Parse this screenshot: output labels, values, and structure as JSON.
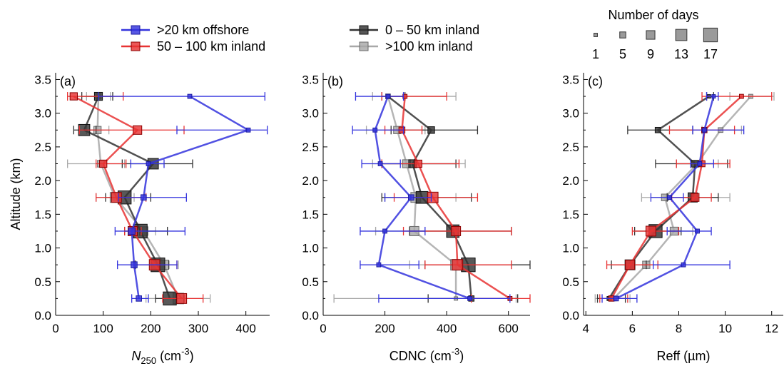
{
  "legend": {
    "series": [
      {
        "name": ">20 km offshore",
        "color": "#3333dd"
      },
      {
        "name": "50 – 100 km inland",
        "color": "#e83333"
      },
      {
        "name": "0 – 50 km inland",
        "color": "#333333"
      },
      {
        "name": ">100 km inland",
        "color": "#a8a8a8"
      }
    ],
    "size_title": "Number of days",
    "sizes": [
      {
        "label": "1",
        "days": 1
      },
      {
        "label": "5",
        "days": 5
      },
      {
        "label": "9",
        "days": 9
      },
      {
        "label": "13",
        "days": 13
      },
      {
        "label": "17",
        "days": 17
      }
    ]
  },
  "chart_data": [
    {
      "type": "scatter",
      "panel_label": "(a)",
      "xlabel_main": "N",
      "xlabel_sub": "250",
      "xlabel_unit": " (cm",
      "xlabel_sup": "-3",
      "xlabel_end": ")",
      "ylabel": "Altitude (km)",
      "xlim": [
        0,
        450
      ],
      "ylim": [
        0,
        3.6
      ],
      "xticks": [
        "0",
        "100",
        "200",
        "300",
        "400"
      ],
      "xtick_values": [
        0,
        100,
        200,
        300,
        400
      ],
      "yticks": [
        "0.0",
        "0.5",
        "1.0",
        "1.5",
        "2.0",
        "2.5",
        "3.0",
        "3.5"
      ],
      "ytick_values": [
        0,
        0.5,
        1,
        1.5,
        2,
        2.5,
        3,
        3.5
      ],
      "series": [
        {
          "name": ">20 km offshore",
          "points": [
            {
              "y": 0.25,
              "x": 175,
              "lo": 160,
              "hi": 195,
              "days": 4
            },
            {
              "y": 0.75,
              "x": 165,
              "lo": 130,
              "hi": 255,
              "days": 5
            },
            {
              "y": 1.25,
              "x": 160,
              "lo": 125,
              "hi": 272,
              "days": 6
            },
            {
              "y": 1.75,
              "x": 185,
              "lo": 132,
              "hi": 275,
              "days": 4
            },
            {
              "y": 2.25,
              "x": 195,
              "lo": 158,
              "hi": 228,
              "days": 2
            },
            {
              "y": 2.75,
              "x": 405,
              "lo": 255,
              "hi": 445,
              "days": 2
            },
            {
              "y": 3.25,
              "x": 282,
              "lo": 90,
              "hi": 440,
              "days": 2
            }
          ]
        },
        {
          "name": "50 – 100 km inland",
          "points": [
            {
              "y": 0.25,
              "x": 265,
              "lo": 225,
              "hi": 310,
              "days": 11
            },
            {
              "y": 0.75,
              "x": 208,
              "lo": 165,
              "hi": 255,
              "days": 12
            },
            {
              "y": 1.25,
              "x": 162,
              "lo": 145,
              "hi": 180,
              "days": 10
            },
            {
              "y": 1.75,
              "x": 128,
              "lo": 85,
              "hi": 190,
              "days": 11
            },
            {
              "y": 2.25,
              "x": 100,
              "lo": 85,
              "hi": 148,
              "days": 7
            },
            {
              "y": 2.75,
              "x": 172,
              "lo": 50,
              "hi": 270,
              "days": 9
            },
            {
              "y": 3.25,
              "x": 38,
              "lo": 25,
              "hi": 142,
              "days": 7
            }
          ]
        },
        {
          "name": "0 – 50 km inland",
          "points": [
            {
              "y": 0.25,
              "x": 240,
              "lo": 210,
              "hi": 270,
              "days": 16
            },
            {
              "y": 0.75,
              "x": 215,
              "lo": 168,
              "hi": 238,
              "days": 17
            },
            {
              "y": 1.25,
              "x": 178,
              "lo": 145,
              "hi": 235,
              "days": 17
            },
            {
              "y": 1.75,
              "x": 145,
              "lo": 105,
              "hi": 200,
              "days": 16
            },
            {
              "y": 2.25,
              "x": 205,
              "lo": 140,
              "hi": 288,
              "days": 12
            },
            {
              "y": 2.75,
              "x": 60,
              "lo": 38,
              "hi": 85,
              "days": 13
            },
            {
              "y": 3.25,
              "x": 90,
              "lo": 55,
              "hi": 120,
              "days": 8
            }
          ]
        },
        {
          "name": ">100 km inland",
          "points": [
            {
              "y": 0.25,
              "x": 258,
              "lo": 190,
              "hi": 325,
              "days": 12
            },
            {
              "y": 0.75,
              "x": 228,
              "lo": 200,
              "hi": 258,
              "days": 10
            },
            {
              "y": 1.25,
              "x": 185,
              "lo": 160,
              "hi": 210,
              "days": 9
            },
            {
              "y": 1.75,
              "x": 125,
              "lo": 85,
              "hi": 165,
              "days": 11
            },
            {
              "y": 2.25,
              "x": 95,
              "lo": 25,
              "hi": 145,
              "days": 6
            },
            {
              "y": 2.75,
              "x": 88,
              "lo": 65,
              "hi": 112,
              "days": 7
            },
            {
              "y": 3.25,
              "x": 90,
              "lo": 65,
              "hi": 115,
              "days": 4
            }
          ]
        }
      ]
    },
    {
      "type": "scatter",
      "panel_label": "(b)",
      "xlabel_main": "CDNC",
      "xlabel_sub": "",
      "xlabel_unit": " (cm",
      "xlabel_sup": "-3",
      "xlabel_end": ")",
      "ylabel": "",
      "xlim": [
        0,
        670
      ],
      "ylim": [
        0,
        3.6
      ],
      "xticks": [
        "0",
        "200",
        "400",
        "600"
      ],
      "xtick_values": [
        0,
        200,
        400,
        600
      ],
      "yticks": [
        "0.0",
        "0.5",
        "1.0",
        "1.5",
        "2.0",
        "2.5",
        "3.0",
        "3.5"
      ],
      "ytick_values": [
        0,
        0.5,
        1,
        1.5,
        2,
        2.5,
        3,
        3.5
      ],
      "series": [
        {
          "name": ">20 km offshore",
          "points": [
            {
              "y": 0.25,
              "x": 475,
              "lo": 180,
              "hi": 605,
              "days": 2
            },
            {
              "y": 0.75,
              "x": 180,
              "lo": 120,
              "hi": 310,
              "days": 2
            },
            {
              "y": 1.25,
              "x": 200,
              "lo": 120,
              "hi": 330,
              "days": 2
            },
            {
              "y": 1.75,
              "x": 285,
              "lo": 200,
              "hi": 350,
              "days": 4
            },
            {
              "y": 2.25,
              "x": 185,
              "lo": 125,
              "hi": 250,
              "days": 2
            },
            {
              "y": 2.75,
              "x": 168,
              "lo": 95,
              "hi": 260,
              "days": 2
            },
            {
              "y": 3.25,
              "x": 210,
              "lo": 105,
              "hi": 260,
              "days": 2
            }
          ]
        },
        {
          "name": "50 – 100 km inland",
          "points": [
            {
              "y": 0.25,
              "x": 605,
              "lo": 480,
              "hi": 670,
              "days": 2
            },
            {
              "y": 0.75,
              "x": 435,
              "lo": 330,
              "hi": 610,
              "days": 12
            },
            {
              "y": 1.25,
              "x": 430,
              "lo": 260,
              "hi": 610,
              "days": 10
            },
            {
              "y": 1.75,
              "x": 355,
              "lo": 230,
              "hi": 500,
              "days": 12
            },
            {
              "y": 2.25,
              "x": 308,
              "lo": 190,
              "hi": 440,
              "days": 7
            },
            {
              "y": 2.75,
              "x": 255,
              "lo": 200,
              "hi": 320,
              "days": 5
            },
            {
              "y": 3.25,
              "x": 265,
              "lo": 190,
              "hi": 400,
              "days": 2
            }
          ]
        },
        {
          "name": "0 – 50 km inland",
          "points": [
            {
              "y": 0.25,
              "x": 480,
              "lo": 340,
              "hi": 630,
              "days": 4
            },
            {
              "y": 0.75,
              "x": 470,
              "lo": 330,
              "hi": 670,
              "days": 17
            },
            {
              "y": 1.25,
              "x": 420,
              "lo": 280,
              "hi": 610,
              "days": 15
            },
            {
              "y": 1.75,
              "x": 320,
              "lo": 190,
              "hi": 480,
              "days": 14
            },
            {
              "y": 2.25,
              "x": 290,
              "lo": 190,
              "hi": 430,
              "days": 8
            },
            {
              "y": 2.75,
              "x": 350,
              "lo": 220,
              "hi": 500,
              "days": 6
            },
            {
              "y": 3.25,
              "x": 210,
              "lo": 190,
              "hi": 265,
              "days": 2
            }
          ]
        },
        {
          "name": ">100 km inland",
          "points": [
            {
              "y": 0.25,
              "x": 430,
              "lo": 35,
              "hi": 625,
              "days": 1
            },
            {
              "y": 0.75,
              "x": 430,
              "lo": 280,
              "hi": 610,
              "days": 12
            },
            {
              "y": 1.25,
              "x": 295,
              "lo": 170,
              "hi": 420,
              "days": 10
            },
            {
              "y": 1.75,
              "x": 300,
              "lo": 200,
              "hi": 430,
              "days": 11
            },
            {
              "y": 2.25,
              "x": 270,
              "lo": 160,
              "hi": 460,
              "days": 8
            },
            {
              "y": 2.75,
              "x": 240,
              "lo": 140,
              "hi": 330,
              "days": 7
            },
            {
              "y": 3.25,
              "x": 210,
              "lo": 160,
              "hi": 430,
              "days": 3
            }
          ]
        }
      ]
    },
    {
      "type": "scatter",
      "panel_label": "(c)",
      "xlabel_main": "Reff (µm)",
      "xlabel_sub": "",
      "xlabel_unit": "",
      "xlabel_sup": "",
      "xlabel_end": "",
      "ylabel": "",
      "xlim": [
        3.9,
        12.5
      ],
      "ylim": [
        0,
        3.6
      ],
      "xticks": [
        "4",
        "6",
        "8",
        "10",
        "12"
      ],
      "xtick_values": [
        4,
        6,
        8,
        10,
        12
      ],
      "yticks": [
        "0.0",
        "0.5",
        "1.0",
        "1.5",
        "2.0",
        "2.5",
        "3.0",
        "3.5"
      ],
      "ytick_values": [
        0,
        0.5,
        1,
        1.5,
        2,
        2.5,
        3,
        3.5
      ],
      "series": [
        {
          "name": ">20 km offshore",
          "points": [
            {
              "y": 0.25,
              "x": 5.3,
              "lo": 4.7,
              "hi": 6.2,
              "days": 3
            },
            {
              "y": 0.75,
              "x": 8.2,
              "lo": 6.9,
              "hi": 10.2,
              "days": 2
            },
            {
              "y": 1.25,
              "x": 8.8,
              "lo": 7.5,
              "hi": 9.4,
              "days": 2
            },
            {
              "y": 1.75,
              "x": 7.6,
              "lo": 6.8,
              "hi": 8.2,
              "days": 2
            },
            {
              "y": 2.25,
              "x": 8.9,
              "lo": 8.5,
              "hi": 9.5,
              "days": 2
            },
            {
              "y": 2.75,
              "x": 9.1,
              "lo": 8.6,
              "hi": 10.8,
              "days": 2
            },
            {
              "y": 3.25,
              "x": 9.5,
              "lo": 9.2,
              "hi": 9.7,
              "days": 1
            }
          ]
        },
        {
          "name": "50 – 100 km inland",
          "points": [
            {
              "y": 0.25,
              "x": 5.1,
              "lo": 4.6,
              "hi": 5.8,
              "days": 4
            },
            {
              "y": 0.75,
              "x": 5.9,
              "lo": 4.9,
              "hi": 7.1,
              "days": 10
            },
            {
              "y": 1.25,
              "x": 6.8,
              "lo": 6.0,
              "hi": 8.0,
              "days": 11
            },
            {
              "y": 1.75,
              "x": 8.7,
              "lo": 7.7,
              "hi": 9.4,
              "days": 8
            },
            {
              "y": 2.25,
              "x": 9.0,
              "lo": 7.9,
              "hi": 10.2,
              "days": 5
            },
            {
              "y": 2.75,
              "x": 9.1,
              "lo": 7.6,
              "hi": 10.4,
              "days": 4
            },
            {
              "y": 3.25,
              "x": 10.7,
              "lo": 9.0,
              "hi": 12.0,
              "days": 2
            }
          ]
        },
        {
          "name": "0 – 50 km inland",
          "points": [
            {
              "y": 0.25,
              "x": 5.0,
              "lo": 4.5,
              "hi": 5.7,
              "days": 2
            },
            {
              "y": 0.75,
              "x": 5.9,
              "lo": 5.1,
              "hi": 6.6,
              "days": 11
            },
            {
              "y": 1.25,
              "x": 7.0,
              "lo": 6.1,
              "hi": 8.1,
              "days": 16
            },
            {
              "y": 1.75,
              "x": 8.6,
              "lo": 7.5,
              "hi": 9.7,
              "days": 10
            },
            {
              "y": 2.25,
              "x": 8.7,
              "lo": 7.0,
              "hi": 10.1,
              "days": 6
            },
            {
              "y": 2.75,
              "x": 7.1,
              "lo": 5.8,
              "hi": 8.6,
              "days": 4
            },
            {
              "y": 3.25,
              "x": 9.3,
              "lo": 9.2,
              "hi": 9.5,
              "days": 1
            }
          ]
        },
        {
          "name": ">100 km inland",
          "points": [
            {
              "y": 0.25,
              "x": 5.2,
              "lo": 4.4,
              "hi": 5.9,
              "days": 3
            },
            {
              "y": 0.75,
              "x": 6.6,
              "lo": 5.9,
              "hi": 7.1,
              "days": 7
            },
            {
              "y": 1.25,
              "x": 7.8,
              "lo": 6.9,
              "hi": 8.6,
              "days": 8
            },
            {
              "y": 1.75,
              "x": 7.4,
              "lo": 6.4,
              "hi": 10.2,
              "days": 6
            },
            {
              "y": 2.25,
              "x": 8.8,
              "lo": 7.9,
              "hi": 9.7,
              "days": 5
            },
            {
              "y": 2.75,
              "x": 9.8,
              "lo": 9.0,
              "hi": 10.7,
              "days": 3
            },
            {
              "y": 3.25,
              "x": 11.1,
              "lo": 10.2,
              "hi": 12.1,
              "days": 2
            }
          ]
        }
      ]
    }
  ]
}
